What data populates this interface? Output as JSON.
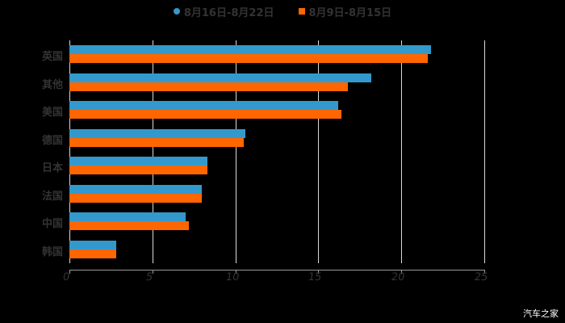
{
  "chart_data": {
    "type": "bar",
    "orientation": "horizontal",
    "title": "",
    "xlabel": "",
    "ylabel": "",
    "categories": [
      "英国",
      "其他",
      "美国",
      "德国",
      "日本",
      "法国",
      "中国",
      "韩国"
    ],
    "series": [
      {
        "name": "8月16日-8月22日",
        "color": "#3399cc",
        "values": [
          21.8,
          18.2,
          16.2,
          10.6,
          8.3,
          8.0,
          7.0,
          2.8
        ]
      },
      {
        "name": "8月9日-8月15日",
        "color": "#ff6600",
        "values": [
          21.6,
          16.8,
          16.4,
          10.5,
          8.3,
          8.0,
          7.2,
          2.8
        ]
      }
    ],
    "xlim": [
      0,
      25
    ],
    "xticks": [
      "0",
      "5",
      "10",
      "15",
      "20",
      "25"
    ],
    "grid": true,
    "legend_position": "top"
  },
  "legend": {
    "series1": "8月16日-8月22日",
    "series2": "8月9日-8月15日"
  },
  "colors": {
    "series1": "#3399cc",
    "series2": "#ff6600",
    "background": "#000000"
  },
  "watermark": "汽车之家"
}
